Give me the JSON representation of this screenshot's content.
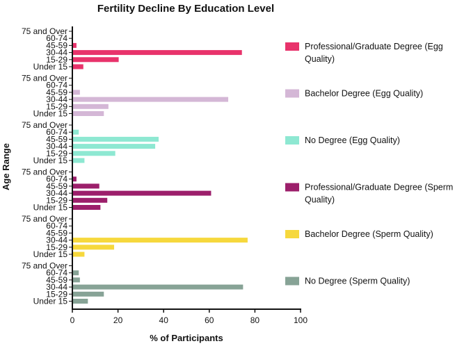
{
  "chart_data": {
    "type": "bar",
    "orientation": "horizontal",
    "title": "Fertility Decline By Education Level",
    "xlabel": "% of Participants",
    "ylabel": "Age Range",
    "xlim": [
      0,
      100
    ],
    "xticks": [
      "0",
      "20",
      "40",
      "60",
      "80",
      "100"
    ],
    "categories": [
      "75 and Over",
      "60-74",
      "45-59",
      "30-44",
      "15-29",
      "Under 15"
    ],
    "series": [
      {
        "name": "Professional/Graduate Degree (Egg Quality)",
        "legend_lines": [
          "Professional/Graduate Degree (Egg",
          "Quality)"
        ],
        "color": "#e8336b",
        "values": [
          0,
          0,
          1.5,
          74,
          20,
          4.5
        ]
      },
      {
        "name": "Bachelor Degree (Egg Quality)",
        "legend_lines": [
          "Bachelor Degree (Egg Quality)"
        ],
        "color": "#d4b7d6",
        "values": [
          0,
          0,
          3,
          68,
          15.5,
          13.5
        ]
      },
      {
        "name": "No Degree (Egg Quality)",
        "legend_lines": [
          "No Degree (Egg Quality)"
        ],
        "color": "#8ee8d2",
        "values": [
          0,
          2.5,
          37.5,
          36,
          18.5,
          5
        ]
      },
      {
        "name": "Professional/Graduate Degree (Sperm Quality)",
        "legend_lines": [
          "Professional/Graduate Degree (Sperm",
          "Quality)"
        ],
        "color": "#9c1f6b",
        "values": [
          0,
          1.5,
          11.5,
          60.5,
          15,
          12
        ]
      },
      {
        "name": "Bachelor Degree (Sperm Quality)",
        "legend_lines": [
          "Bachelor Degree (Sperm Quality)"
        ],
        "color": "#f6d83d",
        "values": [
          0,
          0,
          0,
          76.5,
          18,
          5
        ]
      },
      {
        "name": "No Degree (Sperm Quality)",
        "legend_lines": [
          "No Degree (Sperm Quality)"
        ],
        "color": "#87a396",
        "values": [
          0,
          2.5,
          3,
          74.5,
          13.5,
          6.5
        ]
      }
    ]
  }
}
